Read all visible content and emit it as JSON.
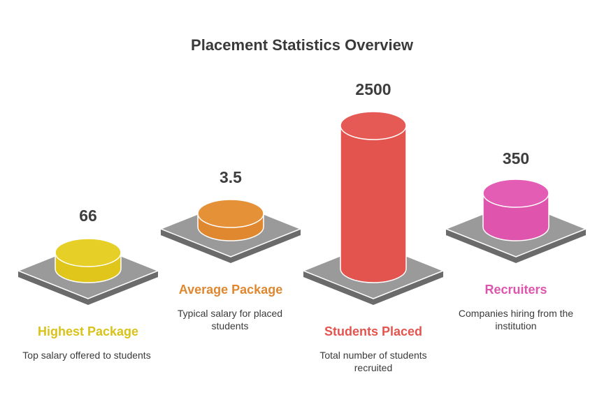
{
  "title": "Placement Statistics Overview",
  "stats": [
    {
      "value": "66",
      "label": "Highest Package",
      "description": "Top salary offered to students",
      "color": "#e0c61a",
      "top_color": "#e6cf26"
    },
    {
      "value": "3.5",
      "label": "Average Package",
      "description": "Typical salary for placed students",
      "color": "#e08830",
      "top_color": "#e49138"
    },
    {
      "value": "2500",
      "label": "Students Placed",
      "description": "Total number of students recruited",
      "color": "#e4544f",
      "top_color": "#e65a55"
    },
    {
      "value": "350",
      "label": "Recruiters",
      "description": "Companies hiring from the institution",
      "color": "#df55ad",
      "top_color": "#e25db3"
    }
  ],
  "colors": {
    "platform_top": "#9a9a9a",
    "platform_side": "#6b6b6b",
    "platform_edge": "#ffffff"
  }
}
